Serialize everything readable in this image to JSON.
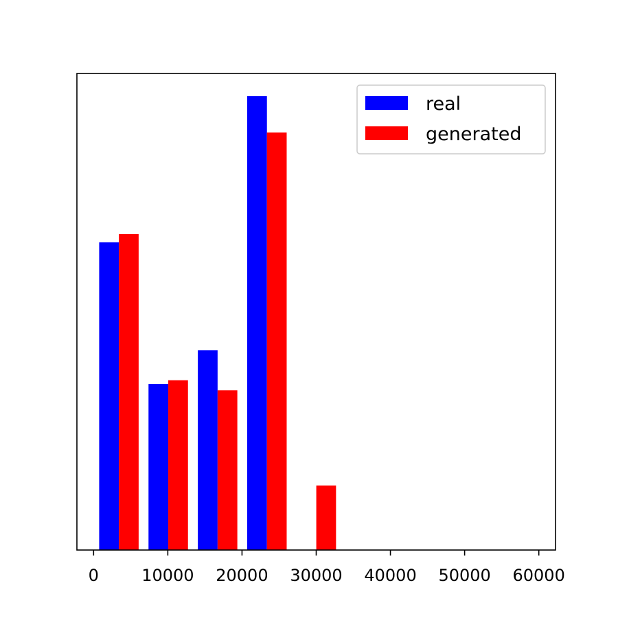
{
  "chart_data": {
    "type": "bar",
    "title": "",
    "xlabel": "",
    "ylabel": "",
    "xlim": [
      -2250,
      62250
    ],
    "ylim": [
      0,
      5.25e-05
    ],
    "x_ticks": [
      0,
      10000,
      20000,
      30000,
      40000,
      50000,
      60000
    ],
    "x_tick_labels": [
      "0",
      "10000",
      "20000",
      "30000",
      "40000",
      "50000",
      "60000"
    ],
    "y_ticks_visible": false,
    "grid": false,
    "legend": {
      "position": "top-right",
      "entries": [
        "real",
        "generated"
      ]
    },
    "bins": [
      [
        750,
        7400
      ],
      [
        7400,
        14050
      ],
      [
        14050,
        20700
      ],
      [
        20700,
        27350
      ],
      [
        27350,
        34000
      ],
      [
        34000,
        40650
      ],
      [
        40650,
        47300
      ],
      [
        47300,
        53950
      ],
      [
        53950,
        60600
      ]
    ],
    "series": [
      {
        "name": "real",
        "color": "#0000ff",
        "values": [
          3.39e-05,
          1.83e-05,
          2.2e-05,
          5e-05,
          0,
          0,
          0,
          0,
          0
        ]
      },
      {
        "name": "generated",
        "color": "#ff0000",
        "values": [
          3.48e-05,
          1.87e-05,
          1.76e-05,
          4.6e-05,
          7.1e-06,
          0,
          0,
          0,
          0
        ]
      }
    ]
  }
}
